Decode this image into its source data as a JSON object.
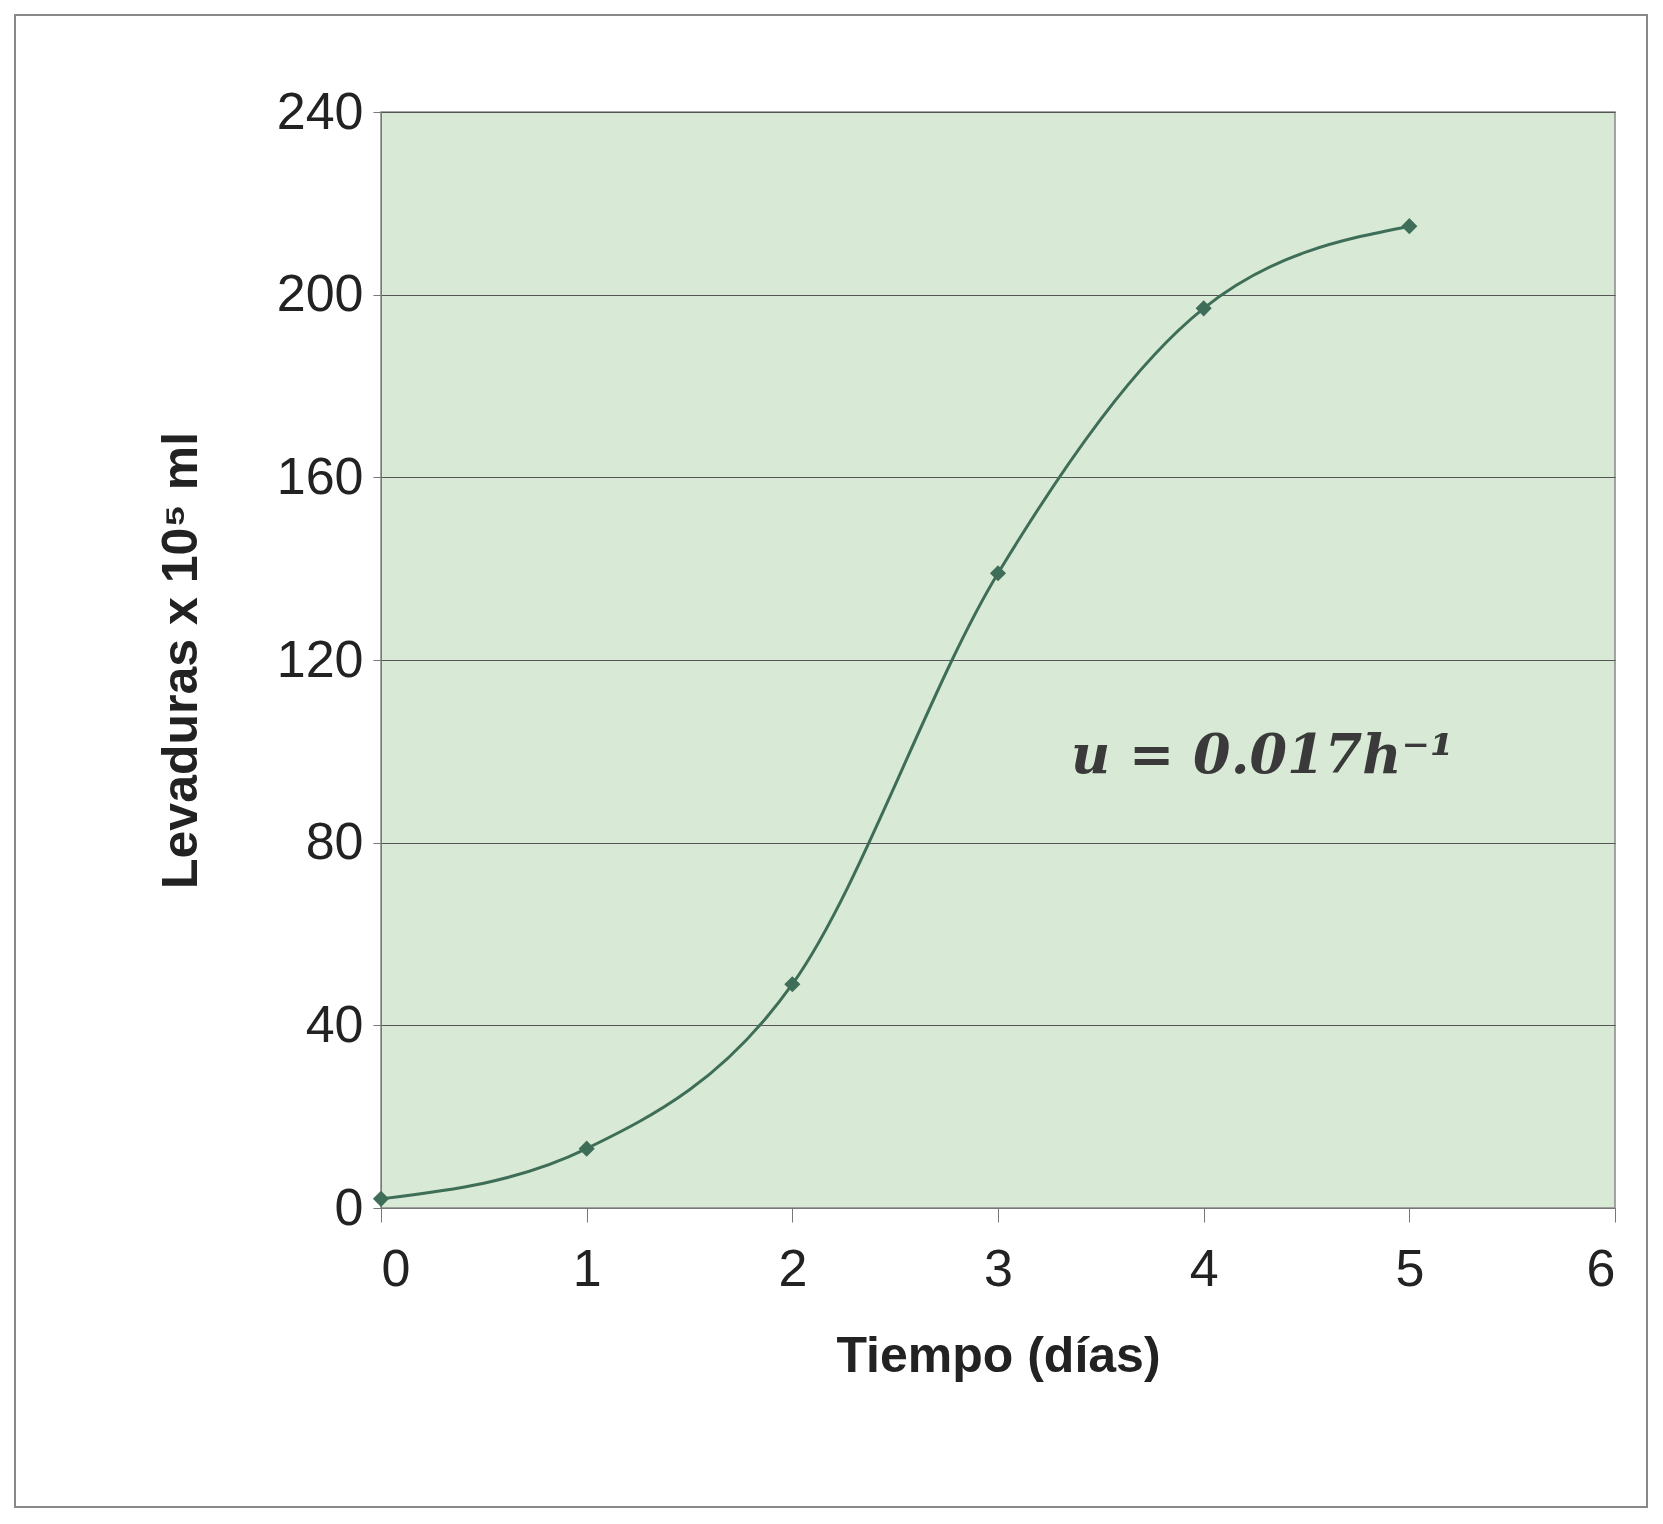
{
  "chart_data": {
    "type": "line",
    "xlabel": "Tiempo (días)",
    "ylabel": "Levaduras x 10⁵ ml",
    "x": [
      0,
      1,
      2,
      3,
      4,
      5
    ],
    "series": [
      {
        "color": "#3f6e58",
        "values": [
          2,
          13,
          49,
          139,
          197,
          215
        ]
      }
    ],
    "xlim": [
      0,
      6
    ],
    "xticks": [
      0,
      1,
      2,
      3,
      4,
      5,
      6
    ],
    "ylim": [
      0,
      240
    ],
    "yticks": [
      0,
      40,
      80,
      120,
      160,
      200,
      240
    ],
    "grid": "y",
    "marker": "diamond",
    "line_style": "solid",
    "annotations": [
      "u = 0.017h⁻¹"
    ]
  }
}
